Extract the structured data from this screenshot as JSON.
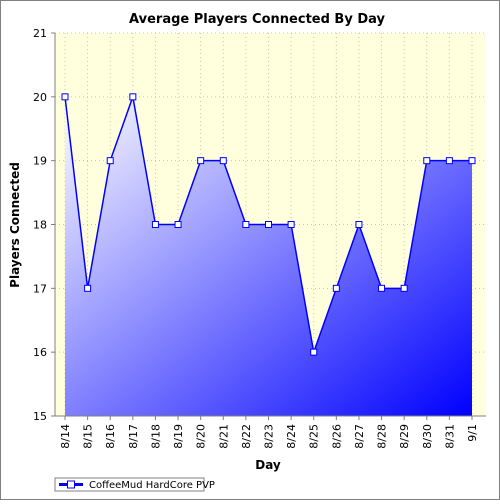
{
  "chart_data": {
    "type": "area",
    "title": "Average Players Connected By Day",
    "xlabel": "Day",
    "ylabel": "Players Connected",
    "categories": [
      "8/14",
      "8/15",
      "8/16",
      "8/17",
      "8/18",
      "8/19",
      "8/20",
      "8/21",
      "8/22",
      "8/23",
      "8/24",
      "8/25",
      "8/26",
      "8/27",
      "8/28",
      "8/29",
      "8/30",
      "8/31",
      "9/1"
    ],
    "series": [
      {
        "name": "CoffeeMud HardCore PVP",
        "values": [
          20,
          17,
          19,
          20,
          18,
          18,
          19,
          19,
          18,
          18,
          18,
          16,
          17,
          18,
          17,
          17,
          19,
          19,
          19
        ]
      }
    ],
    "ylim": [
      15,
      21
    ],
    "yticks": [
      15,
      16,
      17,
      18,
      19,
      20,
      21
    ],
    "grid": true,
    "legend_position": "bottom-left",
    "colors": {
      "plot_background": "#ffffdd",
      "line": "#0000ff",
      "fill_light": "#ffffff",
      "fill_dark": "#0000ff",
      "grid": "#c8c8a0"
    }
  }
}
